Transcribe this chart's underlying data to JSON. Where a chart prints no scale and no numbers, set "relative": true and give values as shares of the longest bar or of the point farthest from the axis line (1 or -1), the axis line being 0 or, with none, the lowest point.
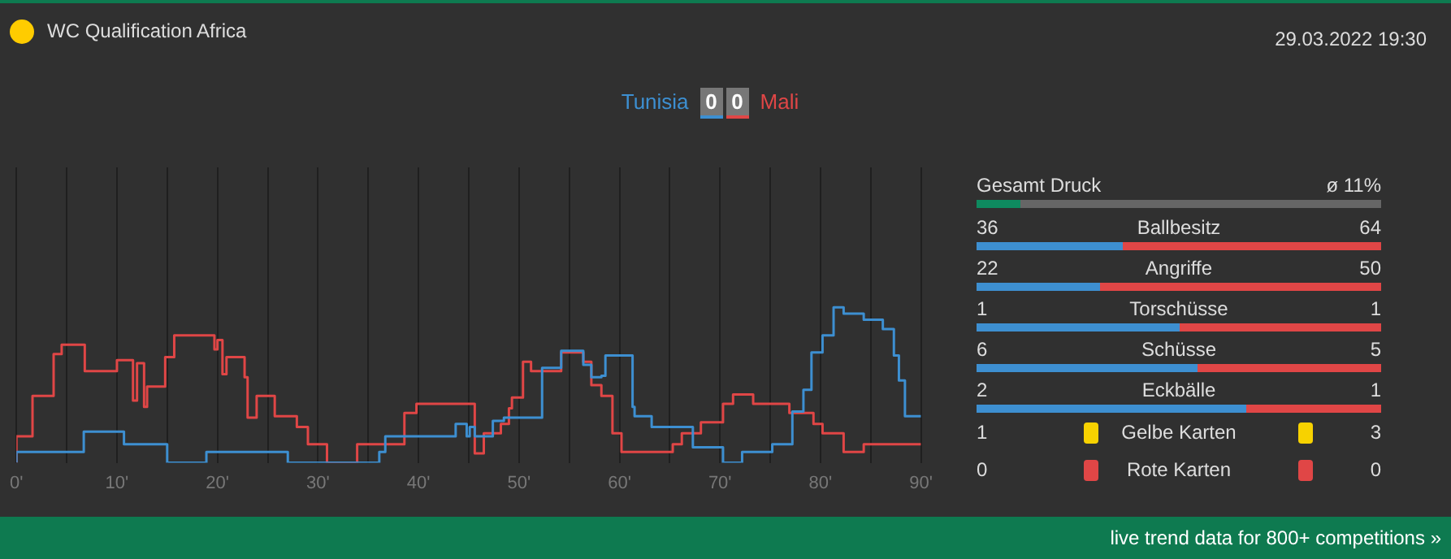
{
  "chart_data": [
    {
      "type": "step",
      "title": "WC Qualification Africa",
      "relative": true,
      "grid": "x",
      "xlim": [
        0,
        90
      ],
      "xticks": [
        {
          "value": 0,
          "label": "0'"
        },
        {
          "value": 5,
          "label": null
        },
        {
          "value": 10,
          "label": "10'"
        },
        {
          "value": 15,
          "label": null
        },
        {
          "value": 20,
          "label": "20'"
        },
        {
          "value": 25,
          "label": null
        },
        {
          "value": 30,
          "label": "30'"
        },
        {
          "value": 35,
          "label": null
        },
        {
          "value": 40,
          "label": "40'"
        },
        {
          "value": 45,
          "label": null
        },
        {
          "value": 50,
          "label": "50'"
        },
        {
          "value": 55,
          "label": null
        },
        {
          "value": 60,
          "label": "60'"
        },
        {
          "value": 65,
          "label": null
        },
        {
          "value": 70,
          "label": "70'"
        },
        {
          "value": 75,
          "label": null
        },
        {
          "value": 80,
          "label": "80'"
        },
        {
          "value": 85,
          "label": null
        },
        {
          "value": 90,
          "label": "90'"
        }
      ],
      "series": [
        {
          "name": "Tunisia",
          "color": "#3d8fd1",
          "x": [
            0,
            6.7,
            10.7,
            15,
            18.9,
            27,
            36.1,
            36.7,
            43.7,
            44.8,
            45.1,
            45.6,
            47.4,
            48.5,
            52.3,
            54.2,
            56.4,
            57.2,
            58.2,
            58.6,
            61.3,
            61.5,
            63.2,
            67.3,
            70.3,
            72.2,
            75.2,
            77.2,
            78.3,
            79.1,
            80.2,
            81.3,
            82.3,
            84.3,
            86.2,
            87.3,
            87.8,
            88.4,
            89.5,
            90
          ],
          "values": [
            0,
            0.07,
            0.2,
            0.12,
            0,
            0.07,
            0,
            0.07,
            0.17,
            0.25,
            0.17,
            0.23,
            0.17,
            0.27,
            0.29,
            0.61,
            0.72,
            0.63,
            0.55,
            0.56,
            0.69,
            0.36,
            0.3,
            0.23,
            0.1,
            0,
            0.07,
            0.12,
            0.33,
            0.47,
            0.71,
            0.82,
            1,
            0.96,
            0.92,
            0.86,
            0.69,
            0.53,
            0.3,
            0.3
          ]
        },
        {
          "name": "Mali",
          "color": "#e04646",
          "x": [
            0,
            1.6,
            3.7,
            4.5,
            6.8,
            10,
            11.6,
            12,
            12.7,
            13,
            14.8,
            15.7,
            19.7,
            20,
            20.5,
            20.9,
            22.7,
            23,
            23.9,
            25.7,
            27.9,
            29,
            30.9,
            33.9,
            38.6,
            39.8,
            45.6,
            46.5,
            48.2,
            49,
            49.3,
            50.4,
            51.2,
            54.2,
            56.4,
            57.2,
            58.2,
            59.3,
            60.2,
            65.3,
            66.2,
            68.1,
            70.3,
            71.3,
            73.3,
            76.9,
            79.3,
            80.2,
            82.3,
            84.3,
            86.2,
            90
          ],
          "values": [
            0,
            0.17,
            0.43,
            0.7,
            0.76,
            0.59,
            0.66,
            0.4,
            0.64,
            0.36,
            0.49,
            0.68,
            0.82,
            0.73,
            0.79,
            0.57,
            0.68,
            0.55,
            0.29,
            0.43,
            0.3,
            0.23,
            0.12,
            0,
            0.12,
            0.32,
            0.38,
            0.06,
            0.19,
            0.25,
            0.35,
            0.42,
            0.65,
            0.59,
            0.71,
            0.65,
            0.5,
            0.43,
            0.19,
            0.07,
            0.12,
            0.19,
            0.26,
            0.38,
            0.44,
            0.38,
            0.32,
            0.25,
            0.19,
            0.07,
            0.12,
            0.12
          ]
        }
      ],
      "annotations": [
        "0",
        "0",
        "live trend data for 800+ competitions »"
      ]
    },
    {
      "type": "other",
      "title": "Gesamt Druck",
      "subtitle": "29.03.2022 19:30",
      "values": [
        11
      ],
      "value_labels": [
        "ø 11%"
      ],
      "color": "#0e8a5f"
    },
    {
      "type": "other",
      "categories": [
        "Ballbesitz",
        "Angriffe",
        "Torschüsse",
        "Schüsse",
        "Eckbälle"
      ],
      "data_labels": true,
      "series": [
        {
          "color": "#3d8fd1",
          "values": [
            36,
            22,
            1,
            6,
            2
          ]
        },
        {
          "color": "#e04646",
          "values": [
            64,
            50,
            1,
            5,
            1
          ]
        }
      ]
    },
    {
      "type": "other",
      "categories": [
        "Gelbe Karten",
        "Rote Karten"
      ],
      "colors": [
        "#f7d200",
        "#e04646"
      ],
      "data_labels": true,
      "series": [
        {
          "values": [
            1,
            0
          ]
        },
        {
          "values": [
            3,
            0
          ]
        }
      ]
    }
  ]
}
